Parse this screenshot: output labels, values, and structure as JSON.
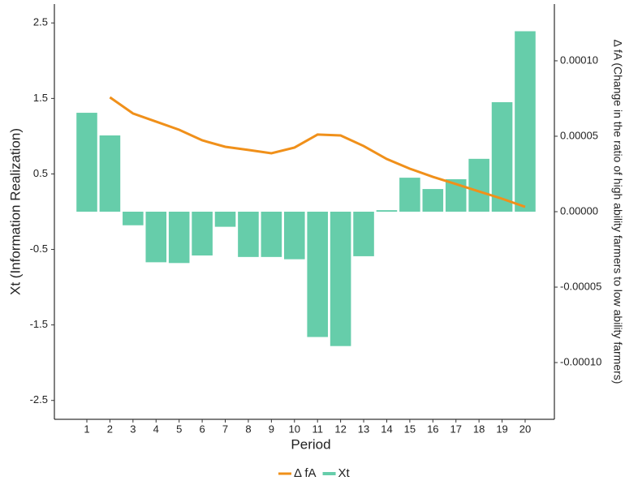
{
  "chart_data": {
    "type": "bar_line",
    "x_label": "Period",
    "y_label": "Xt (Information Realization)",
    "y2_label": "Δ fA (Change in the ratio of high ability farmers to low ability farmers)",
    "categories": [
      "1",
      "2",
      "3",
      "4",
      "5",
      "6",
      "7",
      "8",
      "9",
      "10",
      "11",
      "12",
      "13",
      "14",
      "15",
      "16",
      "17",
      "18",
      "19",
      "20"
    ],
    "ylim": [
      -2.75,
      2.75
    ],
    "yticks": [
      -2.5,
      -1.5,
      -0.5,
      0.5,
      1.5,
      2.5
    ],
    "y2lim": [
      -0.0001376,
      0.0001376
    ],
    "y2ticks": [
      {
        "value": -0.0001,
        "label": "-0.00010"
      },
      {
        "value": -5e-05,
        "label": "-0.00005"
      },
      {
        "value": 0,
        "label": "0.00000"
      },
      {
        "value": 5e-05,
        "label": "0.00005"
      },
      {
        "value": 0.0001,
        "label": "0.00010"
      }
    ],
    "legend_position": "bottom",
    "series": [
      {
        "name": "Δ fA",
        "type": "line",
        "axis": "y2",
        "color": "#f0901a",
        "values": [
          null,
          7.58e-05,
          6.51e-05,
          5.97e-05,
          5.43e-05,
          4.73e-05,
          4.3e-05,
          4.09e-05,
          3.87e-05,
          4.25e-05,
          5.11e-05,
          5.05e-05,
          4.35e-05,
          3.49e-05,
          2.85e-05,
          2.31e-05,
          1.83e-05,
          1.34e-05,
          8.6e-06,
          3.2e-06
        ]
      },
      {
        "name": "Xt",
        "type": "bar",
        "color": "#66cdaa",
        "values": [
          1.31,
          1.01,
          -0.18,
          -0.67,
          -0.68,
          -0.58,
          -0.2,
          -0.6,
          -0.6,
          -0.63,
          -1.66,
          -1.78,
          -0.59,
          0.02,
          0.45,
          0.3,
          0.43,
          0.7,
          1.45,
          2.39
        ]
      }
    ]
  }
}
